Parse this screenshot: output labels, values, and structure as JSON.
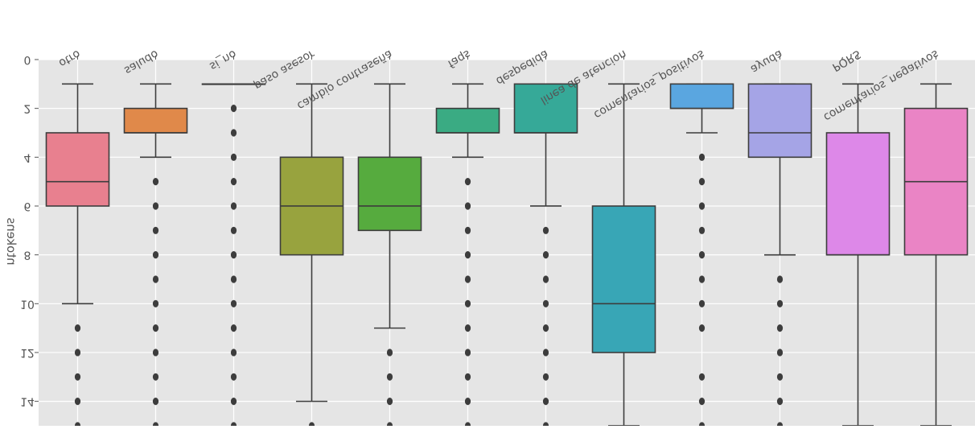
{
  "chart_data": {
    "type": "box",
    "orientation": "flipped-vertical",
    "ylabel": "ntokens",
    "ylim": [
      0,
      15
    ],
    "y_inverted": true,
    "y_ticks": [
      0,
      2,
      4,
      6,
      8,
      10,
      12,
      14
    ],
    "grid": true,
    "background": "#e5e5e5",
    "categories": [
      "otro",
      "saludo",
      "si_no",
      "paso asesor",
      "cambio contraseña",
      "faqs",
      "despedida",
      "linea de atencion",
      "comentarios_positivos",
      "ayuda",
      "PQRS",
      "comentarios_negativos"
    ],
    "boxes": [
      {
        "category": "otro",
        "color": "#e8808f",
        "whislo": 1,
        "q1": 3,
        "med": 5,
        "q3": 6,
        "whishi": 10,
        "fliers": [
          11,
          12,
          13,
          14,
          15
        ]
      },
      {
        "category": "saludo",
        "color": "#e0894a",
        "whislo": 1,
        "q1": 2,
        "med": 3,
        "q3": 3,
        "whishi": 4,
        "fliers": [
          5,
          6,
          7,
          8,
          9,
          10,
          11,
          12,
          13,
          14,
          15
        ]
      },
      {
        "category": "si_no",
        "color": "#c8a13a",
        "whislo": 1,
        "q1": 1,
        "med": 1,
        "q3": 1,
        "whishi": 1,
        "fliers": [
          2,
          3,
          4,
          5,
          6,
          7,
          8,
          9,
          10,
          11,
          12,
          13,
          14,
          15
        ]
      },
      {
        "category": "paso asesor",
        "color": "#98a33e",
        "whislo": 1,
        "q1": 4,
        "med": 6,
        "q3": 8,
        "whishi": 14,
        "fliers": [
          15
        ]
      },
      {
        "category": "cambio contraseña",
        "color": "#56ab3e",
        "whislo": 1,
        "q1": 4,
        "med": 6,
        "q3": 7,
        "whishi": 11,
        "fliers": [
          12,
          13,
          14,
          15
        ]
      },
      {
        "category": "faqs",
        "color": "#3aab83",
        "whislo": 1,
        "q1": 2,
        "med": 3,
        "q3": 3,
        "whishi": 4,
        "fliers": [
          5,
          6,
          7,
          8,
          9,
          10,
          11,
          12,
          13,
          14,
          15
        ]
      },
      {
        "category": "despedida",
        "color": "#36a998",
        "whislo": 1,
        "q1": 1,
        "med": 3,
        "q3": 3,
        "whishi": 6,
        "fliers": [
          7,
          8,
          9,
          10,
          11,
          12,
          13,
          14,
          15
        ]
      },
      {
        "category": "linea de atencion",
        "color": "#38a6b6",
        "whislo": 1,
        "q1": 6,
        "med": 10,
        "q3": 12,
        "whishi": 15,
        "fliers": []
      },
      {
        "category": "comentarios_positivos",
        "color": "#5aa6e0",
        "whislo": 1,
        "q1": 1,
        "med": 2,
        "q3": 2,
        "whishi": 3,
        "fliers": [
          4,
          5,
          6,
          7,
          8,
          9,
          10,
          11,
          13,
          14,
          15
        ]
      },
      {
        "category": "ayuda",
        "color": "#a5a4e6",
        "whislo": 1,
        "q1": 1,
        "med": 3,
        "q3": 4,
        "whishi": 8,
        "fliers": [
          9,
          10,
          11,
          12,
          13,
          14,
          15
        ]
      },
      {
        "category": "PQRS",
        "color": "#dd88e8",
        "whislo": 1,
        "q1": 3,
        "med": 8,
        "q3": 8,
        "whishi": 15,
        "fliers": []
      },
      {
        "category": "comentarios_negativos",
        "color": "#ea84c5",
        "whislo": 1,
        "q1": 2,
        "med": 5,
        "q3": 8,
        "whishi": 15,
        "fliers": []
      }
    ]
  }
}
